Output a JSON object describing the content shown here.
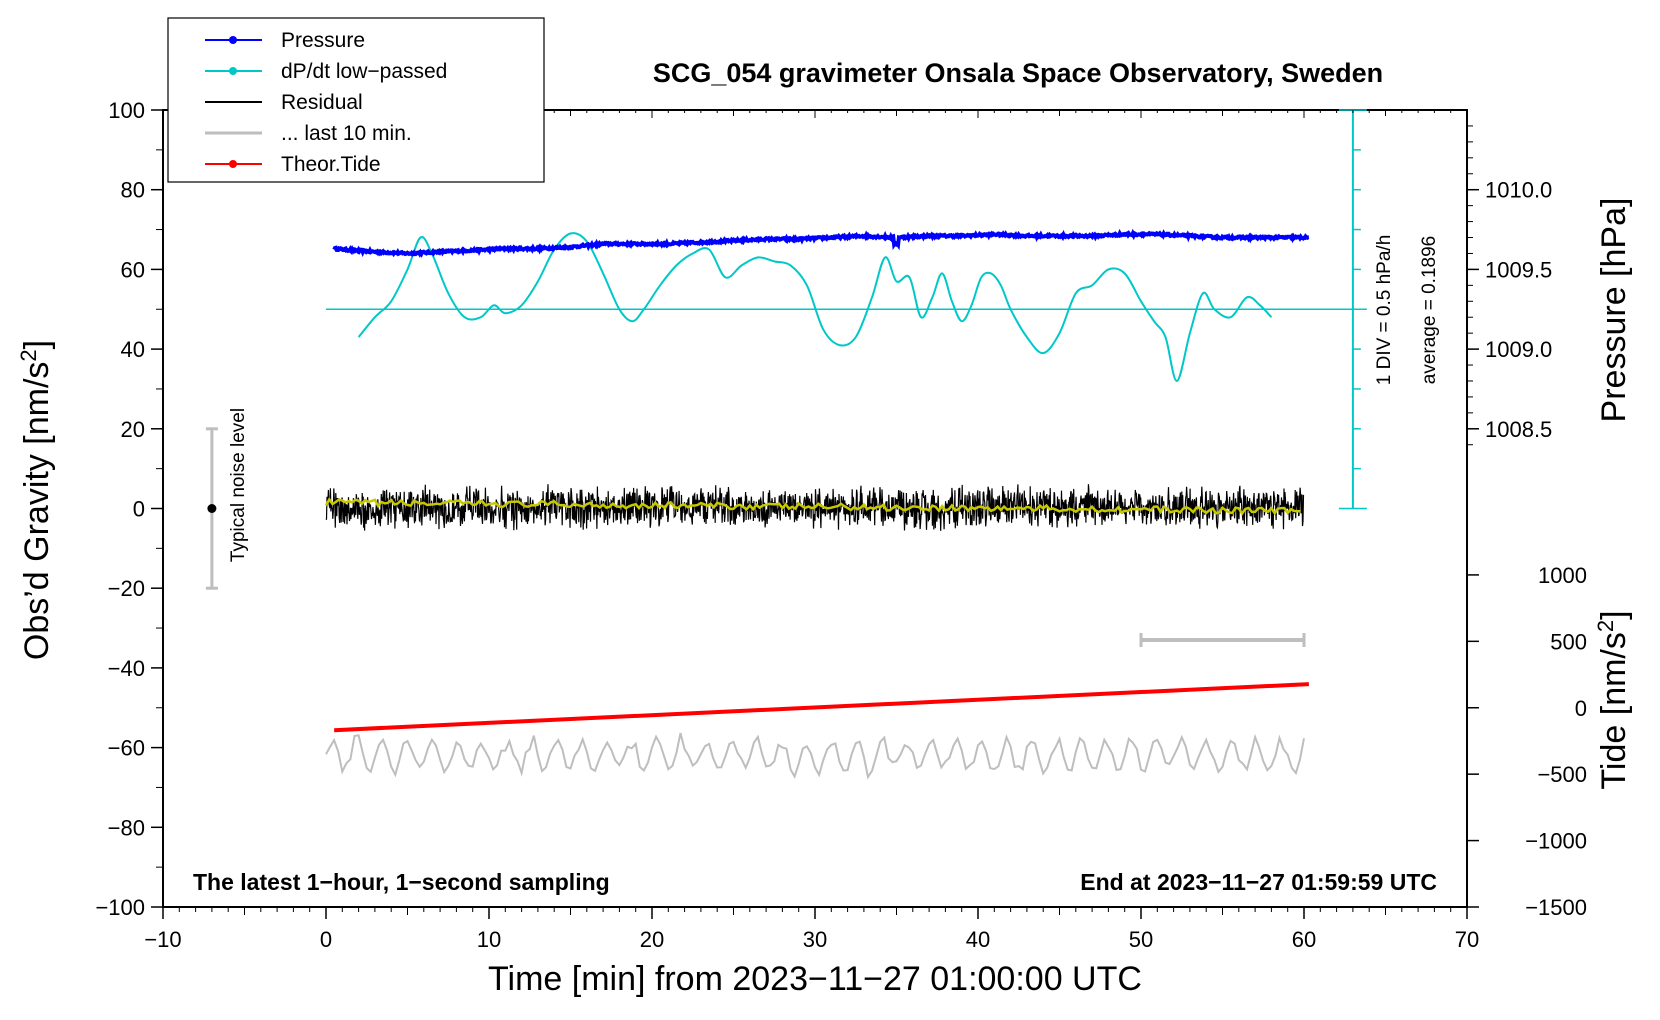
{
  "chart_data": {
    "type": "line",
    "title": "SCG_054 gravimeter Onsala Space Observatory, Sweden",
    "xlabel": "Time [min] from 2023−11−27 01:00:00 UTC",
    "ylabel_left": "Obs’d Gravity [nm/s",
    "ylabel_left_sup": "2",
    "ylabel_left_end": "]",
    "ylabel_right_pressure": "Pressure [hPa]",
    "ylabel_right_tide": "Tide [nm/s",
    "ylabel_right_tide_sup": "2",
    "ylabel_right_tide_end": "]",
    "xlim": [
      -10,
      70
    ],
    "ylim_left": [
      -100,
      100
    ],
    "x_ticks": [
      -10,
      0,
      10,
      20,
      30,
      40,
      50,
      60,
      70
    ],
    "x_tick_labels": [
      "−10",
      "0",
      "10",
      "20",
      "30",
      "40",
      "50",
      "60",
      "70"
    ],
    "y_left_ticks": [
      100,
      80,
      60,
      40,
      20,
      0,
      -20,
      -40,
      -60,
      -80,
      -100
    ],
    "y_left_tick_labels": [
      "100",
      "80",
      "60",
      "40",
      "20",
      "0",
      "−20",
      "−40",
      "−60",
      "−80",
      "−100"
    ],
    "pressure_ticks": [
      1010.0,
      1009.5,
      1009.0,
      1008.5
    ],
    "pressure_tick_labels": [
      "1010.0",
      "1009.5",
      "1009.0",
      "1008.5"
    ],
    "pressure_scale": {
      "ref_value": 1010.0,
      "ref_gravity": 80,
      "gravity_per_hPa": 40
    },
    "tide_ticks": [
      1000,
      500,
      0,
      -500,
      -1000,
      -1500
    ],
    "tide_tick_labels": [
      "1000",
      "500",
      "0",
      "−500",
      "−1000",
      "−1500"
    ],
    "tide_scale": {
      "ref_value": 0,
      "ref_gravity": -50,
      "gravity_per_unit": 0.0333333
    },
    "legend": [
      {
        "label": "Pressure",
        "color": "#0000ff",
        "marker": true
      },
      {
        "label": "dP/dt low−passed",
        "color": "#00c8c8",
        "marker": true
      },
      {
        "label": "Residual",
        "color": "#000000",
        "marker": false
      },
      {
        "label": "... last 10 min.",
        "color": "#bebebe",
        "marker": false
      },
      {
        "label": "Theor.Tide",
        "color": "#ff0000",
        "marker": true
      }
    ],
    "series": {
      "pressure": {
        "name": "Pressure",
        "color": "#0000ff",
        "x": [
          0.5,
          3,
          5,
          7,
          9,
          11,
          13,
          15,
          17,
          19,
          21,
          23,
          25,
          27,
          29,
          31,
          33,
          35,
          37,
          39,
          41,
          43,
          45,
          47,
          49,
          51,
          53,
          55,
          57,
          59,
          60.3
        ],
        "values": [
          1009.63,
          1009.61,
          1009.6,
          1009.61,
          1009.62,
          1009.63,
          1009.63,
          1009.64,
          1009.66,
          1009.66,
          1009.66,
          1009.67,
          1009.68,
          1009.69,
          1009.69,
          1009.7,
          1009.71,
          1009.7,
          1009.71,
          1009.71,
          1009.72,
          1009.71,
          1009.71,
          1009.71,
          1009.72,
          1009.72,
          1009.71,
          1009.7,
          1009.7,
          1009.7,
          1009.7
        ]
      },
      "dpdt": {
        "name": "dP/dt low−passed",
        "color": "#00c8c8",
        "baseline_gravity": 50,
        "div_hPa_per_h": 0.5,
        "average": 0.1896,
        "x": [
          2,
          3,
          4,
          5,
          5.8,
          6.5,
          7.5,
          8.5,
          9.5,
          10.3,
          11,
          12,
          13,
          14,
          15,
          16,
          17,
          18,
          18.8,
          19.5,
          20.5,
          21.5,
          22.5,
          23.5,
          24.5,
          25.5,
          26.5,
          27.5,
          28.5,
          29.5,
          30.5,
          31.5,
          32.5,
          33.5,
          34.3,
          35,
          35.8,
          36.5,
          37.2,
          37.8,
          38.4,
          39,
          39.6,
          40.2,
          40.8,
          41.4,
          42,
          43,
          44,
          45,
          46,
          47,
          48,
          49,
          50,
          50.8,
          51.5,
          52.2,
          53,
          53.8,
          54.5,
          55.5,
          56.5,
          57.3,
          58
        ],
        "values": [
          43,
          48,
          52,
          60,
          68,
          64,
          54,
          48,
          48,
          51,
          49,
          51,
          57,
          65,
          69,
          67,
          59,
          50,
          47,
          50,
          56,
          61,
          64,
          65,
          58,
          61,
          63,
          62,
          61,
          56,
          45,
          41,
          43,
          53,
          63,
          57,
          58,
          48,
          53,
          59,
          52,
          47,
          51,
          58,
          59,
          56,
          50,
          43,
          39,
          44,
          54,
          56,
          60,
          59,
          52,
          47,
          43,
          32,
          44,
          54,
          50,
          48,
          53,
          51,
          48
        ]
      },
      "residual": {
        "name": "Residual",
        "color": "#000000",
        "smooth_color": "#c8c800",
        "x_range": [
          0,
          60
        ],
        "center": 0.3,
        "amplitude": 4,
        "min": -9,
        "max": 10
      },
      "last10": {
        "name": "... last 10 min.",
        "color": "#bebebe",
        "x_range": [
          0,
          60
        ],
        "center": -62,
        "amplitude": 4
      },
      "tide": {
        "name": "Theor.Tide",
        "color": "#ff0000",
        "x": [
          0.5,
          60.3
        ],
        "values": [
          -169,
          178
        ]
      }
    },
    "annotations": {
      "noise_label": "Typical noise level",
      "noise_bar": {
        "x": -7,
        "center": 0,
        "low": -20,
        "high": 20
      },
      "div_label": "1 DIV = 0.5 hPa/h",
      "average_label": "average = 0.1896",
      "dpdt_scale": {
        "x": 63,
        "top": 100,
        "bottom": 0,
        "step": 10
      },
      "last10_bar": {
        "x_start": 50,
        "x_end": 60,
        "y": -33
      },
      "bottom_left": "The latest 1−hour, 1−second sampling",
      "bottom_right": "End at 2023−11−27 01:59:59 UTC"
    }
  }
}
